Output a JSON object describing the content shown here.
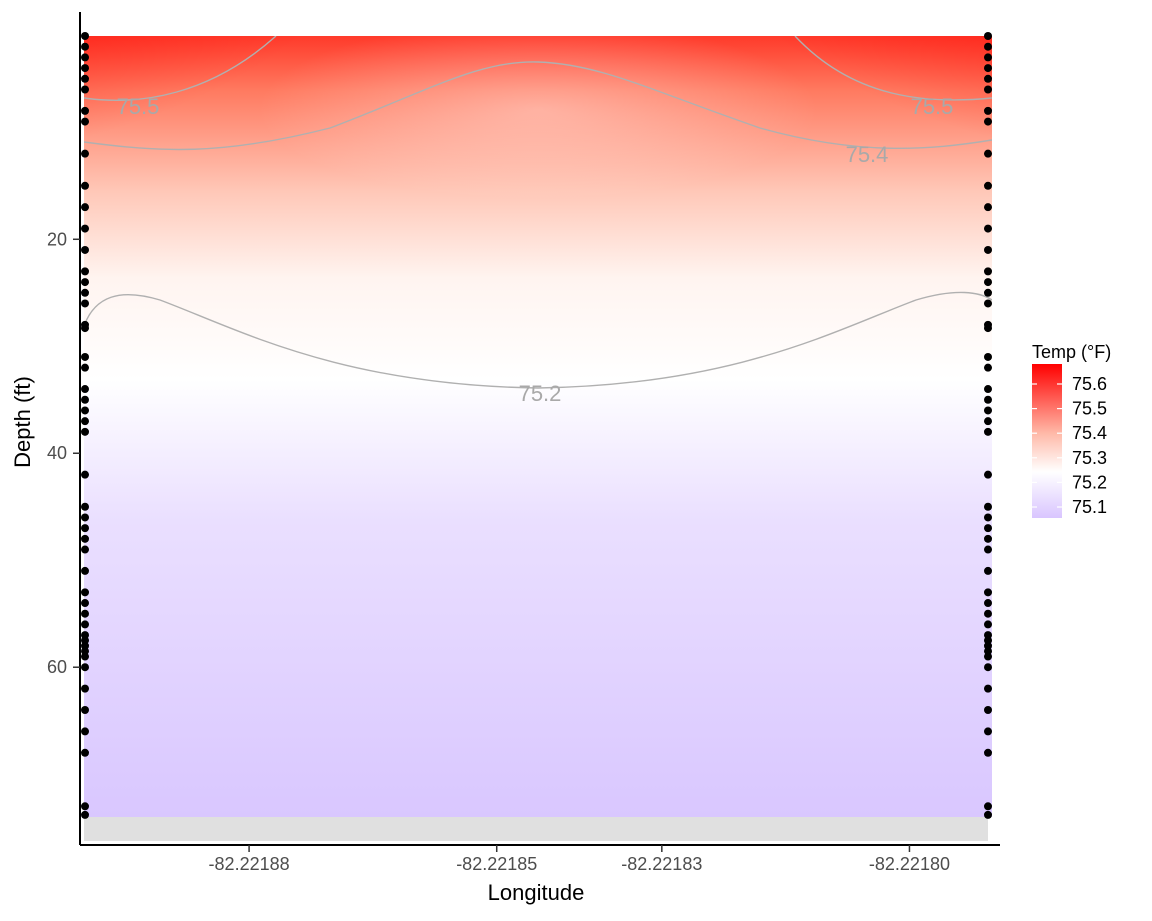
{
  "chart_data": {
    "type": "heatmap",
    "xlabel": "Longitude",
    "ylabel": "Depth (ft)",
    "xlim": [
      -82.2219,
      -82.22179
    ],
    "ylim": [
      74,
      1
    ],
    "y_reversed": true,
    "x_ticks": [
      {
        "value": -82.22188,
        "label": "-82.22188"
      },
      {
        "value": -82.22185,
        "label": "-82.22185"
      },
      {
        "value": -82.22183,
        "label": "-82.22183"
      },
      {
        "value": -82.2218,
        "label": "-82.22180"
      }
    ],
    "y_ticks": [
      {
        "value": 20,
        "label": "20"
      },
      {
        "value": 40,
        "label": "40"
      },
      {
        "value": 60,
        "label": "60"
      }
    ],
    "legend": {
      "title": "Temp (°F)",
      "placement": "right",
      "labels": [
        "75.6",
        "75.5",
        "75.4",
        "75.3",
        "75.2",
        "75.1"
      ],
      "low_color": "#d9c5ff",
      "mid_color": "#ffffff",
      "high_color": "#ff0000"
    },
    "contours": [
      {
        "label": "75.5",
        "labels_shown": [
          "75.5",
          "75.5"
        ]
      },
      {
        "label": "75.4",
        "labels_shown": [
          "75.4"
        ]
      },
      {
        "label": "75.2",
        "labels_shown": [
          "75.2"
        ]
      }
    ],
    "grid": false,
    "sample_points": {
      "left_longitude": -82.2219,
      "right_longitude": -82.22179,
      "color": "#000000"
    }
  }
}
